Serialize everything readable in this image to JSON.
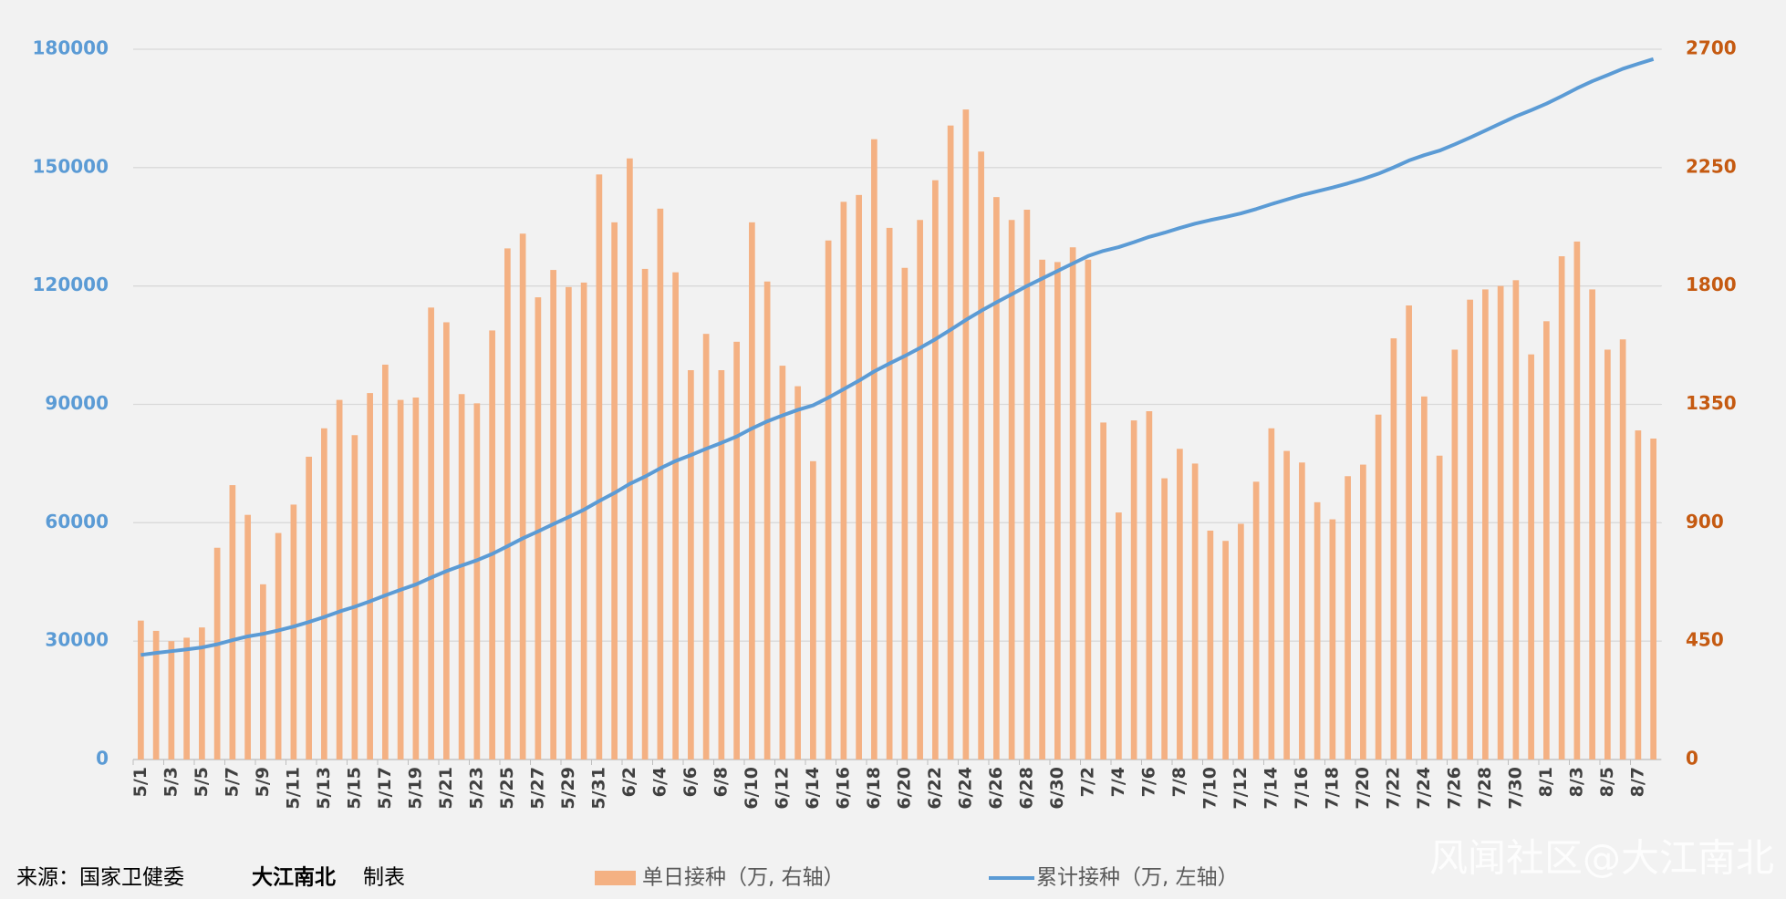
{
  "chart_data": {
    "type": "bar",
    "categories": [
      "5/1",
      null,
      "5/3",
      null,
      "5/5",
      null,
      "5/7",
      null,
      "5/9",
      null,
      "5/11",
      null,
      "5/13",
      null,
      "5/15",
      null,
      "5/17",
      null,
      "5/19",
      null,
      "5/21",
      null,
      "5/23",
      null,
      "5/25",
      null,
      "5/27",
      null,
      "5/29",
      null,
      "5/31",
      null,
      "6/2",
      null,
      "6/4",
      null,
      "6/6",
      null,
      "6/8",
      null,
      "6/10",
      null,
      "6/12",
      null,
      "6/14",
      null,
      "6/16",
      null,
      "6/18",
      null,
      "6/20",
      null,
      "6/22",
      null,
      "6/24",
      null,
      "6/26",
      null,
      "6/28",
      null,
      "6/30",
      null,
      "7/2",
      null,
      "7/4",
      null,
      "7/6",
      null,
      "7/8",
      null,
      "7/10",
      null,
      "7/12",
      null,
      "7/14",
      null,
      "7/16",
      null,
      "7/18",
      null,
      "7/20",
      null,
      "7/22",
      null,
      "7/24",
      null,
      "7/26",
      null,
      "7/28",
      null,
      "7/30",
      null,
      "8/1",
      null,
      "8/3",
      null,
      "8/5",
      null,
      "8/7",
      null
    ],
    "series": [
      {
        "name": "单日接种（万, 右轴）",
        "color": "#f4b183",
        "type": "bar",
        "axis": "y2",
        "values": [
          528,
          489,
          450,
          463,
          502,
          805,
          1043,
          930,
          666,
          861,
          969,
          1151,
          1259,
          1367,
          1233,
          1393,
          1501,
          1367,
          1376,
          1718,
          1662,
          1389,
          1354,
          1631,
          1943,
          1999,
          1757,
          1861,
          1796,
          1813,
          2224,
          2042,
          2285,
          1865,
          2094,
          1852,
          1480,
          1618,
          1480,
          1588,
          2042,
          1817,
          1497,
          1419,
          1134,
          1973,
          2120,
          2146,
          2358,
          2021,
          1869,
          2051,
          2202,
          2410,
          2471,
          2311,
          2138,
          2051,
          2090,
          1900,
          1891,
          1947,
          1900,
          1281,
          939,
          1289,
          1324,
          1069,
          1181,
          1125,
          870,
          831,
          896,
          1056,
          1259,
          1173,
          1129,
          978,
          913,
          1077,
          1121,
          1311,
          1601,
          1726,
          1380,
          1155,
          1558,
          1748,
          1787,
          1800,
          1822,
          1540,
          1666,
          1913,
          1969,
          1787,
          1558,
          1597,
          1251,
          1220
        ]
      },
      {
        "name": "累计接种（万, 左轴）",
        "color": "#5b9bd5",
        "type": "line",
        "values": [
          26500,
          27000,
          27450,
          27900,
          28400,
          29200,
          30250,
          31200,
          31850,
          32700,
          33700,
          34850,
          36100,
          37500,
          38700,
          40100,
          41600,
          43000,
          44350,
          46100,
          47750,
          49150,
          50500,
          52100,
          54050,
          56050,
          57800,
          59650,
          61450,
          63300,
          65500,
          67550,
          69850,
          71700,
          73800,
          75650,
          77150,
          78750,
          80250,
          81850,
          83900,
          85700,
          87200,
          88600,
          89750,
          91700,
          93850,
          96000,
          98350,
          100350,
          102250,
          104300,
          106500,
          108900,
          111400,
          113700,
          115850,
          117900,
          120000,
          121900,
          123800,
          125700,
          127600,
          128900,
          129850,
          131100,
          132450,
          133500,
          134700,
          135800,
          136700,
          137500,
          138400,
          139500,
          140750,
          141900,
          143050,
          144000,
          144950,
          146000,
          147150,
          148450,
          150050,
          151800,
          153150,
          154300,
          155900,
          157600,
          159400,
          161200,
          163000,
          164550,
          166200,
          168100,
          170100,
          171900,
          173450,
          175050,
          176300,
          177500
        ]
      }
    ],
    "ylim": [
      0,
      180000
    ],
    "yticks": [
      0,
      30000,
      60000,
      90000,
      120000,
      150000,
      180000
    ],
    "y2lim": [
      0,
      2700
    ],
    "y2ticks": [
      0,
      450,
      900,
      1350,
      1800,
      2250,
      2700
    ],
    "grid": true
  },
  "footer": {
    "source": "来源：国家卫健委",
    "author": "大江南北",
    "made": "制表",
    "watermark": "风闻社区@大江南北"
  }
}
